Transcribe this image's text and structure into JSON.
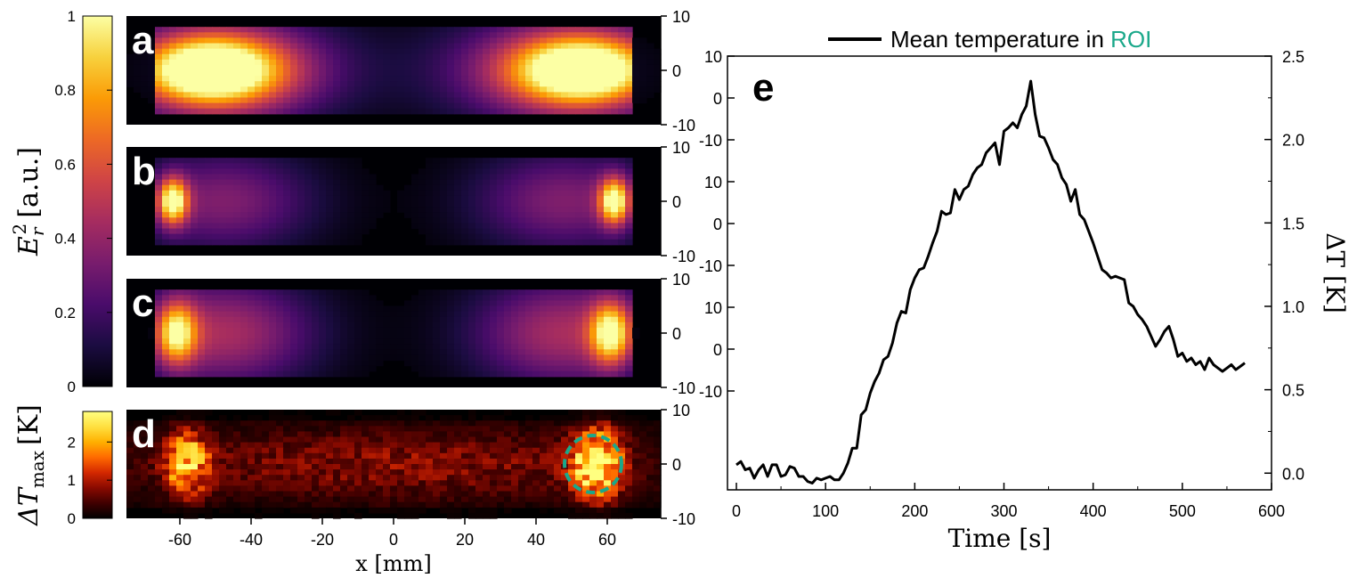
{
  "figure": {
    "colors": {
      "inferno": [
        "#000004",
        "#1b0c41",
        "#4a0c6b",
        "#781c6d",
        "#a52c60",
        "#cf4446",
        "#ed6925",
        "#fb9b06",
        "#f7d13d",
        "#fcffa4"
      ],
      "hot": [
        "#000000",
        "#400000",
        "#8a0a00",
        "#d42800",
        "#ff6a00",
        "#ffb000",
        "#ffe040",
        "#ffff80"
      ],
      "roi": "#1aa88a",
      "line": "#000000"
    },
    "colorbar_er": {
      "ylabel_main": "E",
      "ylabel_sub": "r",
      "ylabel_sup": "2",
      "ylabel_rest": "[a.u.]",
      "ticks": [
        {
          "value": 0,
          "label": "0"
        },
        {
          "value": 0.2,
          "label": "0.2"
        },
        {
          "value": 0.4,
          "label": "0.4"
        },
        {
          "value": 0.6,
          "label": "0.6"
        },
        {
          "value": 0.8,
          "label": "0.8"
        },
        {
          "value": 1,
          "label": "1"
        }
      ],
      "range": [
        0,
        1
      ]
    },
    "colorbar_dt": {
      "ylabel_main": "ΔT",
      "ylabel_sub": "max",
      "ylabel_rest": "[K]",
      "ticks": [
        {
          "value": 0,
          "label": "0"
        },
        {
          "value": 1,
          "label": "1"
        },
        {
          "value": 2,
          "label": "2"
        }
      ],
      "range": [
        0,
        2.8
      ]
    },
    "panels": [
      {
        "letter": "a",
        "cmap": "inferno",
        "blobs": [
          {
            "cx": -52,
            "cy": 0,
            "sx": 14,
            "sy": 4.5,
            "amp": 1.0
          },
          {
            "cx": 54,
            "cy": 0,
            "sx": 14,
            "sy": 4.5,
            "amp": 0.98
          },
          {
            "cx": -45,
            "cy": 0,
            "sx": 22,
            "sy": 7,
            "amp": 0.45
          },
          {
            "cx": 45,
            "cy": 0,
            "sx": 22,
            "sy": 7,
            "amp": 0.45
          }
        ]
      },
      {
        "letter": "b",
        "cmap": "inferno",
        "blobs": [
          {
            "cx": -62,
            "cy": 0,
            "sx": 3,
            "sy": 3,
            "amp": 0.9
          },
          {
            "cx": 62,
            "cy": 0,
            "sx": 3,
            "sy": 3,
            "amp": 0.9
          },
          {
            "cx": -48,
            "cy": 0,
            "sx": 18,
            "sy": 6.5,
            "amp": 0.35
          },
          {
            "cx": 48,
            "cy": 0,
            "sx": 18,
            "sy": 6.5,
            "amp": 0.35
          }
        ]
      },
      {
        "letter": "c",
        "cmap": "inferno",
        "blobs": [
          {
            "cx": -61,
            "cy": 0,
            "sx": 4,
            "sy": 4,
            "amp": 0.75
          },
          {
            "cx": 61,
            "cy": 0,
            "sx": 4,
            "sy": 4,
            "amp": 0.8
          },
          {
            "cx": -48,
            "cy": 0,
            "sx": 18,
            "sy": 7,
            "amp": 0.45
          },
          {
            "cx": 48,
            "cy": 0,
            "sx": 18,
            "sy": 7,
            "amp": 0.45
          }
        ]
      },
      {
        "letter": "d",
        "cmap": "hot",
        "noisy": true,
        "blobs": [
          {
            "cx": -58,
            "cy": 0,
            "sx": 4,
            "sy": 4,
            "amp": 0.75
          },
          {
            "cx": 57,
            "cy": 0,
            "sx": 4.5,
            "sy": 4.5,
            "amp": 1.0
          },
          {
            "cx": 0,
            "cy": 0,
            "sx": 60,
            "sy": 5,
            "amp": 0.28
          }
        ],
        "roi": {
          "cx": 56,
          "cy": 0,
          "r": 7.5
        }
      }
    ],
    "map_axes": {
      "x_ticks": [
        -60,
        -40,
        -20,
        0,
        20,
        40,
        60
      ],
      "x_tick_labels": [
        "-60",
        "-40",
        "-20",
        "0",
        "20",
        "40",
        "60"
      ],
      "xlim": [
        -75,
        75
      ],
      "y_ticks": [
        10,
        0,
        -10
      ],
      "y_tick_labels": [
        "10",
        "0",
        "-10"
      ],
      "ylim": [
        -10,
        10
      ],
      "xlabel": "x [mm]"
    },
    "panel_e": {
      "letter": "e"
    }
  },
  "chart_data": [
    {
      "type": "heatmap",
      "title": "",
      "panels": [
        "a",
        "b",
        "c",
        "d"
      ],
      "xlabel": "x [mm]",
      "ylabel": "",
      "xlim": [
        -75,
        75
      ],
      "ylim": [
        -10,
        10
      ],
      "colorbars": [
        {
          "label": "E_r^2 [a.u.]",
          "range": [
            0,
            1
          ],
          "ticks": [
            0,
            0.2,
            0.4,
            0.6,
            0.8,
            1
          ]
        },
        {
          "label": "ΔT_max [K]",
          "range": [
            0,
            2.8
          ],
          "ticks": [
            0,
            1,
            2
          ]
        }
      ],
      "hotspots_x": {
        "a": [
          -52,
          54
        ],
        "b": [
          -62,
          62
        ],
        "c": [
          -61,
          61
        ],
        "d": [
          -58,
          57
        ]
      },
      "roi_center_x": 56
    },
    {
      "type": "line",
      "title": "",
      "xlabel": "Time [s]",
      "ylabel": "ΔT [K]",
      "xlim": [
        -10,
        600
      ],
      "ylim": [
        -0.1,
        2.5
      ],
      "x_ticks": [
        0,
        100,
        200,
        300,
        400,
        500,
        600
      ],
      "y_ticks": [
        0.0,
        0.5,
        1.0,
        1.5,
        2.0,
        2.5
      ],
      "y_tick_labels": [
        "0.0",
        "0.5",
        "1.0",
        "1.5",
        "2.0",
        "2.5"
      ],
      "left_ticks": [
        10,
        0,
        -10,
        10,
        0,
        -10,
        10,
        0,
        -10
      ],
      "legend": {
        "position": "top",
        "text_prefix": "Mean temperature in ",
        "text_highlight": "ROI"
      },
      "series": [
        {
          "name": "Mean temperature in ROI",
          "x": [
            0,
            5,
            10,
            15,
            20,
            25,
            30,
            35,
            40,
            45,
            50,
            55,
            60,
            65,
            70,
            75,
            80,
            85,
            90,
            95,
            100,
            105,
            110,
            115,
            120,
            125,
            130,
            135,
            140,
            145,
            150,
            155,
            160,
            165,
            170,
            175,
            180,
            185,
            190,
            195,
            200,
            205,
            210,
            215,
            220,
            225,
            230,
            235,
            240,
            245,
            250,
            255,
            260,
            265,
            270,
            275,
            280,
            285,
            290,
            295,
            300,
            305,
            310,
            315,
            320,
            325,
            330,
            335,
            340,
            345,
            350,
            355,
            360,
            365,
            370,
            375,
            380,
            385,
            390,
            395,
            400,
            405,
            410,
            415,
            420,
            425,
            430,
            435,
            440,
            445,
            450,
            455,
            460,
            465,
            470,
            475,
            480,
            485,
            490,
            495,
            500,
            505,
            510,
            515,
            520,
            525,
            530,
            535,
            540,
            545,
            550,
            555,
            560,
            565,
            570
          ],
          "values": [
            0.05,
            0.07,
            0.02,
            0.03,
            -0.03,
            0.02,
            0.05,
            -0.02,
            0.05,
            0.05,
            -0.02,
            -0.01,
            0.04,
            0.03,
            -0.02,
            -0.02,
            -0.05,
            -0.06,
            -0.03,
            -0.04,
            -0.03,
            -0.02,
            -0.04,
            -0.04,
            0.0,
            0.06,
            0.15,
            0.15,
            0.35,
            0.38,
            0.48,
            0.55,
            0.6,
            0.68,
            0.7,
            0.78,
            0.9,
            0.97,
            0.96,
            1.1,
            1.17,
            1.22,
            1.23,
            1.3,
            1.38,
            1.45,
            1.57,
            1.55,
            1.56,
            1.7,
            1.64,
            1.7,
            1.72,
            1.79,
            1.83,
            1.85,
            1.92,
            1.95,
            1.98,
            1.85,
            2.05,
            2.07,
            2.1,
            2.07,
            2.15,
            2.2,
            2.35,
            2.15,
            2.02,
            2.01,
            1.95,
            1.88,
            1.85,
            1.77,
            1.73,
            1.63,
            1.7,
            1.55,
            1.52,
            1.45,
            1.38,
            1.3,
            1.22,
            1.2,
            1.17,
            1.18,
            1.17,
            1.16,
            1.02,
            1.0,
            0.95,
            0.92,
            0.88,
            0.82,
            0.76,
            0.8,
            0.85,
            0.88,
            0.8,
            0.7,
            0.72,
            0.67,
            0.69,
            0.65,
            0.67,
            0.62,
            0.69,
            0.65,
            0.63,
            0.61,
            0.63,
            0.65,
            0.62,
            0.64,
            0.66
          ]
        }
      ]
    }
  ]
}
